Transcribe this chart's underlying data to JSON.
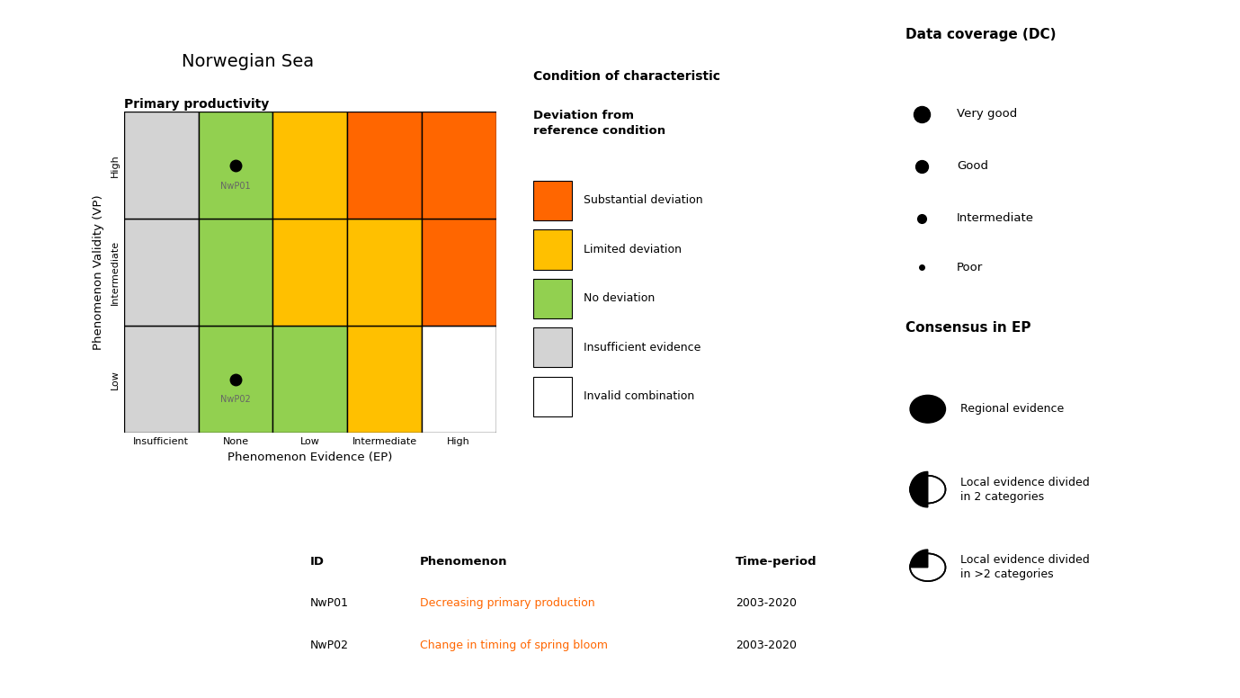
{
  "title": "Norwegian Sea",
  "subtitle": "Primary productivity",
  "xlabel": "Phenomenon Evidence (EP)",
  "ylabel": "Phenomenon Validity (VP)",
  "ep_labels": [
    "Insufficient",
    "None",
    "Low",
    "Intermediate",
    "High"
  ],
  "vp_labels": [
    "Low",
    "Intermediate",
    "High"
  ],
  "grid_colors": [
    [
      "#d3d3d3",
      "#92d050",
      "#92d050",
      "#ffc000",
      "#ffffff"
    ],
    [
      "#d3d3d3",
      "#92d050",
      "#ffc000",
      "#ffc000",
      "#ff6600"
    ],
    [
      "#d3d3d3",
      "#92d050",
      "#ffc000",
      "#ff6600",
      "#ff6600"
    ]
  ],
  "indicators": [
    {
      "id": "NwP01",
      "ep_idx": 1,
      "vp_idx": 2,
      "label": "NwP01"
    },
    {
      "id": "NwP02",
      "ep_idx": 1,
      "vp_idx": 0,
      "label": "NwP02"
    }
  ],
  "legend_condition_title": "Condition of characteristic",
  "legend_condition_subtitle": "Deviation from\nreference condition",
  "legend_colors": [
    "#ff6600",
    "#ffc000",
    "#92d050",
    "#d3d3d3",
    "#ffffff"
  ],
  "legend_labels": [
    "Substantial deviation",
    "Limited deviation",
    "No deviation",
    "Insufficient evidence",
    "Invalid combination"
  ],
  "dc_title": "Data coverage (DC)",
  "dc_items": [
    "Very good",
    "Good",
    "Intermediate",
    "Poor"
  ],
  "dc_sizes": [
    13,
    10,
    7,
    4
  ],
  "ep_title": "Consensus in EP",
  "ep_items": [
    "Regional evidence",
    "Local evidence divided\nin 2 categories",
    "Local evidence divided\nin >2 categories"
  ],
  "table_headers": [
    "ID",
    "Phenomenon",
    "Time-period"
  ],
  "table_rows": [
    [
      "NwP01",
      "Decreasing primary production",
      "2003-2020"
    ],
    [
      "NwP02",
      "Change in timing of spring bloom",
      "2003-2020"
    ]
  ],
  "phenomenon_color": "#ff6600",
  "background_color": "#ffffff"
}
